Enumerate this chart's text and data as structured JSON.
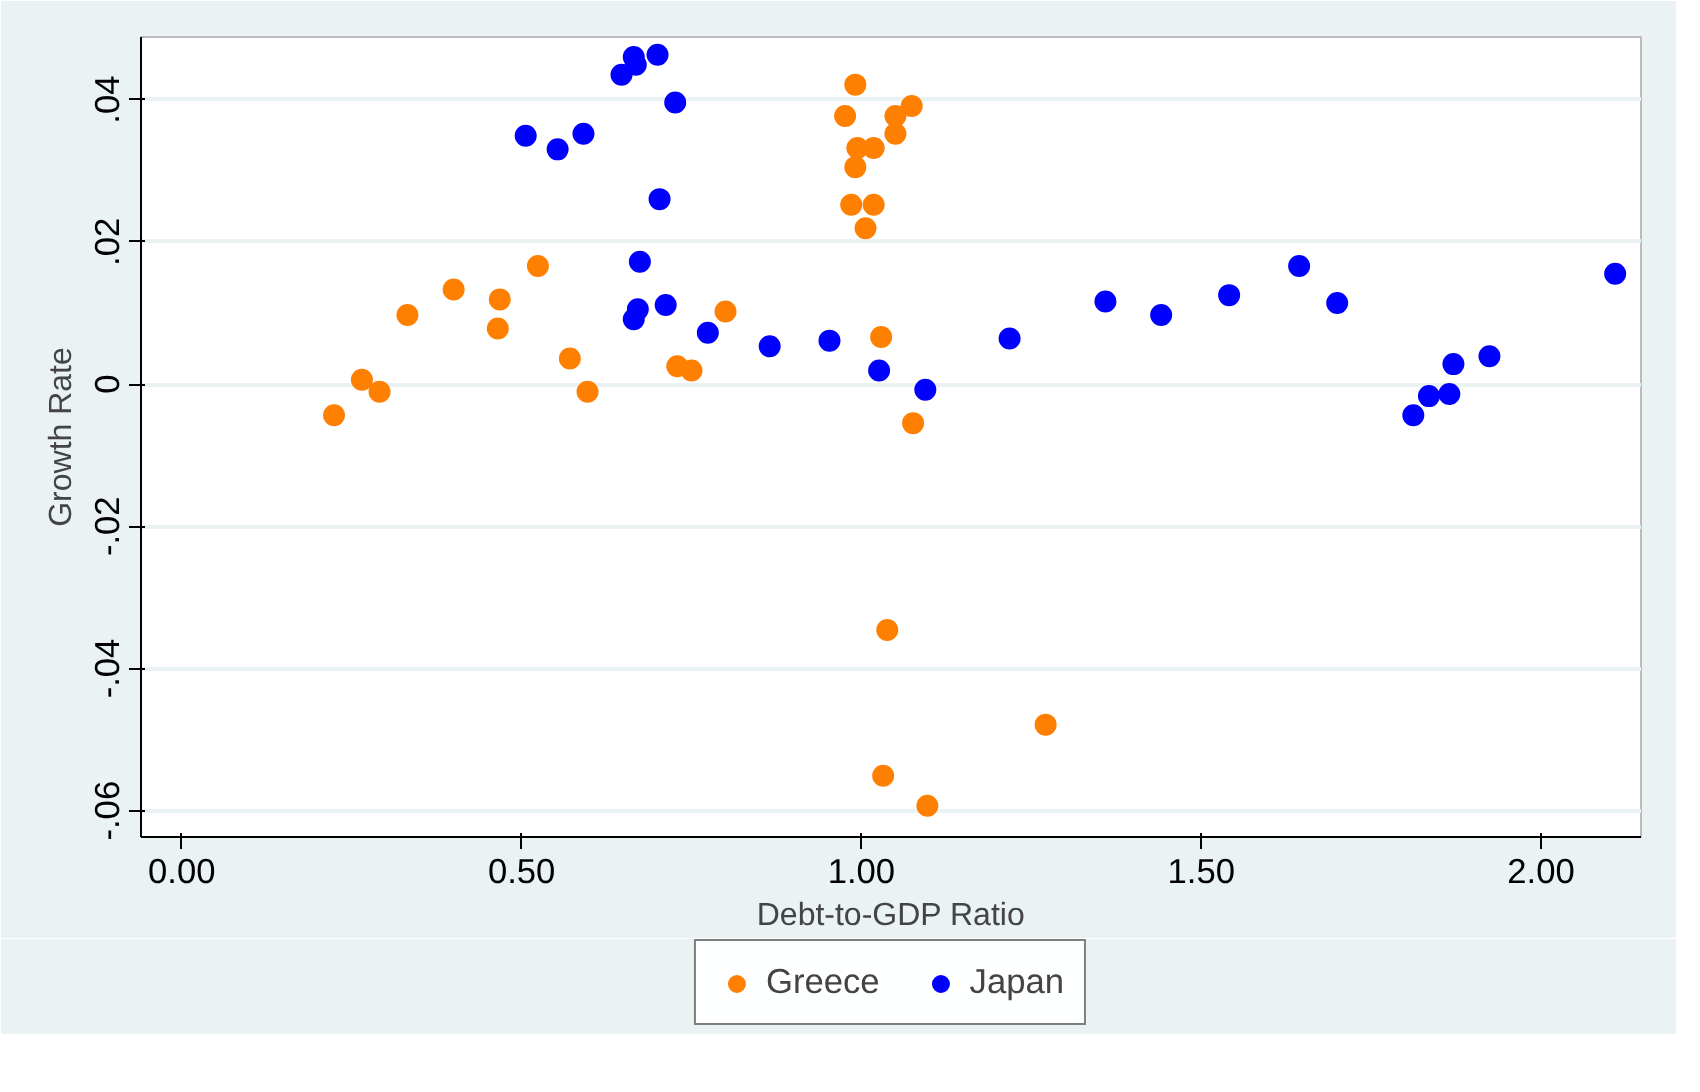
{
  "chart_data": {
    "type": "scatter",
    "xlabel": "Debt-to-GDP Ratio",
    "ylabel": "Growth Rate",
    "xlim": [
      -0.06,
      2.147
    ],
    "ylim": [
      -0.0637,
      0.0488
    ],
    "xticks": [
      {
        "value": 0,
        "label": "0.00"
      },
      {
        "value": 0.5,
        "label": "0.50"
      },
      {
        "value": 1,
        "label": "1.00"
      },
      {
        "value": 1.5,
        "label": "1.50"
      },
      {
        "value": 2,
        "label": "2.00"
      }
    ],
    "yticks": [
      {
        "value": -0.06,
        "label": "-.06"
      },
      {
        "value": -0.04,
        "label": "-.04"
      },
      {
        "value": -0.02,
        "label": "-.02"
      },
      {
        "value": 0,
        "label": "0"
      },
      {
        "value": 0.02,
        "label": ".02"
      },
      {
        "value": 0.04,
        "label": ".04"
      }
    ],
    "grid": "y",
    "legend": "bottom",
    "marker": "circle",
    "series": [
      {
        "name": "Greece",
        "color": "#ff8000",
        "x": [
          0.224,
          0.265,
          0.291,
          0.332,
          0.4,
          0.468,
          0.465,
          0.524,
          0.571,
          0.597,
          0.8,
          0.729,
          0.75,
          1.029,
          1.076,
          0.991,
          0.976,
          1.05,
          1.074,
          1.05,
          0.994,
          1.018,
          0.991,
          0.985,
          1.018,
          1.006,
          1.038,
          1.271,
          1.032,
          1.097
        ],
        "values": [
          -0.0044,
          0.0006,
          -0.0011,
          0.0097,
          0.0133,
          0.0119,
          0.0078,
          0.0166,
          0.0036,
          -0.0011,
          0.0102,
          0.0025,
          0.0019,
          0.0066,
          -0.0055,
          0.0421,
          0.0377,
          0.0377,
          0.0391,
          0.0352,
          0.0332,
          0.0332,
          0.0305,
          0.0252,
          0.0252,
          0.0219,
          -0.0346,
          -0.0479,
          -0.0551,
          -0.0593
        ]
      },
      {
        "name": "Japan",
        "color": "#0000ff",
        "x": [
          0.506,
          0.553,
          0.591,
          0.647,
          0.665,
          0.668,
          0.7,
          0.726,
          0.703,
          0.674,
          0.671,
          0.665,
          0.712,
          0.774,
          0.865,
          0.953,
          1.026,
          1.094,
          1.218,
          1.359,
          1.441,
          1.541,
          1.644,
          1.7,
          2.109,
          1.924,
          1.871,
          1.865,
          1.835,
          1.812
        ],
        "values": [
          0.0349,
          0.033,
          0.0352,
          0.0435,
          0.046,
          0.0449,
          0.0463,
          0.0396,
          0.026,
          0.0172,
          0.0105,
          0.0091,
          0.0111,
          0.0072,
          0.0053,
          0.0061,
          0.0019,
          -0.0008,
          0.0064,
          0.0116,
          0.0097,
          0.0125,
          0.0166,
          0.0114,
          0.0155,
          0.0039,
          0.0028,
          -0.0014,
          -0.0017,
          -0.0044
        ]
      }
    ]
  }
}
